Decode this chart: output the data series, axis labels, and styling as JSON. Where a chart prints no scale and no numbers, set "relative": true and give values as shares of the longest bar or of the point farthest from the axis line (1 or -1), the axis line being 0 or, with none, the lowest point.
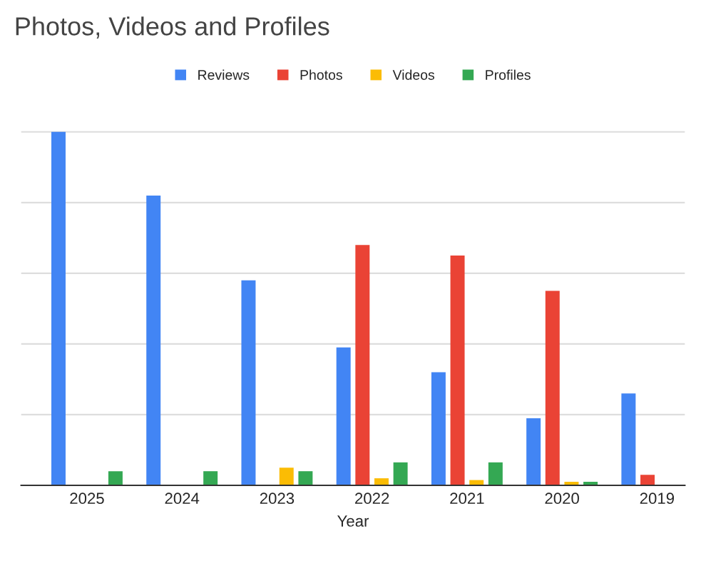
{
  "chart_data": {
    "type": "bar",
    "title": "Photos, Videos and Profiles",
    "xlabel": "Year",
    "categories": [
      "2025",
      "2024",
      "2023",
      "2022",
      "2021",
      "2020",
      "2019"
    ],
    "relative": true,
    "grid": "y",
    "legend": "top",
    "series": [
      {
        "name": "Reviews",
        "color": "#4285f4",
        "values": [
          1.0,
          0.82,
          0.58,
          0.39,
          0.32,
          0.19,
          0.26
        ]
      },
      {
        "name": "Photos",
        "color": "#ea4335",
        "values": [
          null,
          null,
          null,
          0.68,
          0.65,
          0.55,
          0.03
        ]
      },
      {
        "name": "Videos",
        "color": "#fbbc04",
        "values": [
          null,
          null,
          0.05,
          0.02,
          0.015,
          0.01,
          null
        ]
      },
      {
        "name": "Profiles",
        "color": "#34a853",
        "values": [
          0.04,
          0.04,
          0.04,
          0.065,
          0.065,
          0.01,
          null
        ]
      }
    ]
  }
}
